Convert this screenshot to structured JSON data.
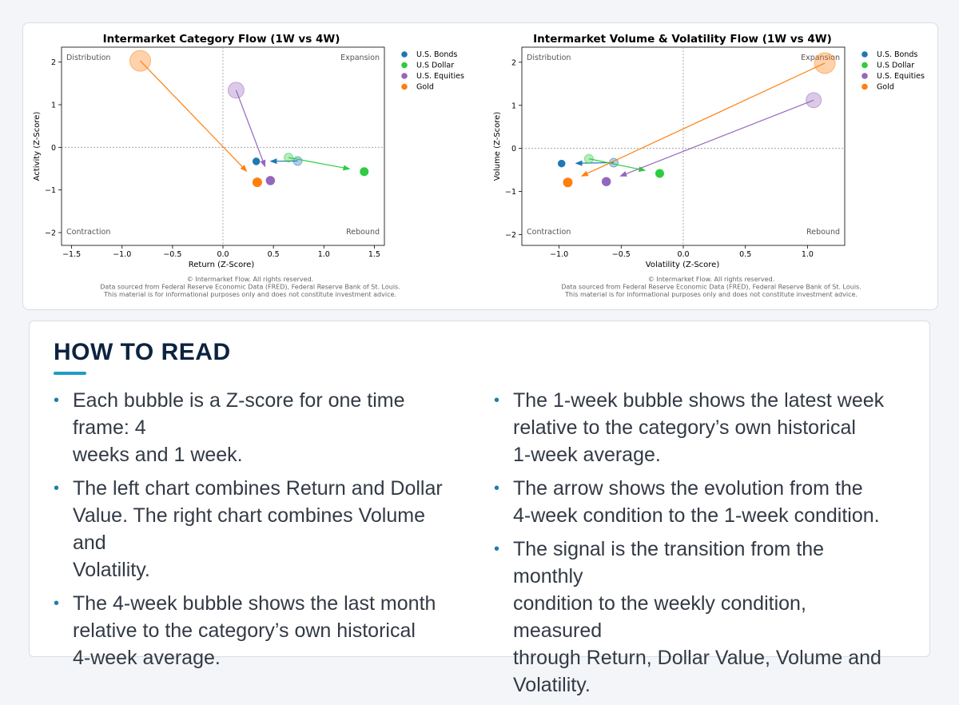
{
  "chart_data": [
    {
      "type": "scatter",
      "title": "Intermarket Category Flow (1W vs 4W)",
      "xlabel": "Return (Z-Score)",
      "ylabel": "Activity (Z-Score)",
      "xlim": [
        -1.6,
        1.6
      ],
      "ylim": [
        -2.3,
        2.35
      ],
      "xticks": [
        -1.5,
        -1.0,
        -0.5,
        0.0,
        0.5,
        1.0,
        1.5
      ],
      "xtick_labels": [
        "−1.5",
        "−1.0",
        "−0.5",
        "0.0",
        "0.5",
        "1.0",
        "1.5"
      ],
      "yticks": [
        2,
        1,
        0,
        -1,
        -2
      ],
      "ytick_labels": [
        "2",
        "1",
        "0",
        "−1",
        "−2"
      ],
      "quadrants": {
        "top_left": "Distribution",
        "top_right": "Expansion",
        "bottom_left": "Contraction",
        "bottom_right": "Rebound"
      },
      "grid": false,
      "legend": "right",
      "series": [
        {
          "name": "U.S. Bonds",
          "color": "#1f77b4",
          "w4": {
            "x": 0.74,
            "y": -0.32
          },
          "w1": {
            "x": 0.33,
            "y": -0.33
          },
          "size_w4": 0.15,
          "size_w1": 0.15
        },
        {
          "name": "U.S Dollar",
          "color": "#2ecc40",
          "w4": {
            "x": 0.65,
            "y": -0.24
          },
          "w1": {
            "x": 1.4,
            "y": -0.57
          },
          "size_w4": 0.15,
          "size_w1": 0.3
        },
        {
          "name": "U.S. Equities",
          "color": "#9467bd",
          "w4": {
            "x": 0.13,
            "y": 1.34
          },
          "w1": {
            "x": 0.47,
            "y": -0.78
          },
          "size_w4": 0.6,
          "size_w1": 0.35
        },
        {
          "name": "Gold",
          "color": "#ff7f0e",
          "w4": {
            "x": -0.82,
            "y": 2.03
          },
          "w1": {
            "x": 0.34,
            "y": -0.82
          },
          "size_w4": 0.9,
          "size_w1": 0.4
        }
      ],
      "footer": [
        "© Intermarket Flow. All rights reserved.",
        "Data sourced from Federal Reserve Economic Data (FRED), Federal Reserve Bank of St. Louis.",
        "This material is for informational purposes only and does not constitute investment advice."
      ]
    },
    {
      "type": "scatter",
      "title": "Intermarket Volume & Volatility Flow (1W vs 4W)",
      "xlabel": "Volatility (Z-Score)",
      "ylabel": "Volume (Z-Score)",
      "xlim": [
        -1.3,
        1.3
      ],
      "ylim": [
        -2.25,
        2.35
      ],
      "xticks": [
        -1.0,
        -0.5,
        0.0,
        0.5,
        1.0
      ],
      "xtick_labels": [
        "−1.0",
        "−0.5",
        "0.0",
        "0.5",
        "1.0"
      ],
      "yticks": [
        2,
        1,
        0,
        -1,
        -2
      ],
      "ytick_labels": [
        "2",
        "1",
        "0",
        "−1",
        "−2"
      ],
      "quadrants": {
        "top_left": "Distribution",
        "top_right": "Expansion",
        "bottom_left": "Contraction",
        "bottom_right": "Rebound"
      },
      "grid": false,
      "legend": "right",
      "series": [
        {
          "name": "U.S. Bonds",
          "color": "#1f77b4",
          "w4": {
            "x": -0.56,
            "y": -0.33
          },
          "w1": {
            "x": -0.98,
            "y": -0.35
          },
          "size_w4": 0.15,
          "size_w1": 0.15
        },
        {
          "name": "U.S Dollar",
          "color": "#2ecc40",
          "w4": {
            "x": -0.76,
            "y": -0.24
          },
          "w1": {
            "x": -0.19,
            "y": -0.58
          },
          "size_w4": 0.15,
          "size_w1": 0.3
        },
        {
          "name": "U.S. Equities",
          "color": "#9467bd",
          "w4": {
            "x": 1.05,
            "y": 1.12
          },
          "w1": {
            "x": -0.62,
            "y": -0.77
          },
          "size_w4": 0.55,
          "size_w1": 0.35
        },
        {
          "name": "Gold",
          "color": "#ff7f0e",
          "w4": {
            "x": 1.14,
            "y": 1.98
          },
          "w1": {
            "x": -0.93,
            "y": -0.79
          },
          "size_w4": 0.9,
          "size_w1": 0.4
        }
      ],
      "footer": [
        "© Intermarket Flow. All rights reserved.",
        "Data sourced from Federal Reserve Economic Data (FRED), Federal Reserve Bank of St. Louis.",
        "This material is for informational purposes only and does not constitute investment advice."
      ]
    }
  ],
  "how_to_read": {
    "title": "HOW TO READ",
    "left": [
      "Each bubble is a Z-score for one time frame: 4\nweeks and 1 week.",
      "The left chart combines Return and Dollar\nValue. The right chart combines Volume and\nVolatility.",
      "The 4-week bubble shows the last month\nrelative to the category’s own historical\n4-week average."
    ],
    "right": [
      "The 1-week bubble shows the latest week\nrelative to the category’s own historical\n1-week average.",
      "The arrow shows the evolution from the\n4-week condition to the 1-week condition.",
      "The signal is the transition from the monthly\ncondition to the weekly condition, measured\nthrough Return, Dollar Value, Volume and\nVolatility."
    ]
  }
}
